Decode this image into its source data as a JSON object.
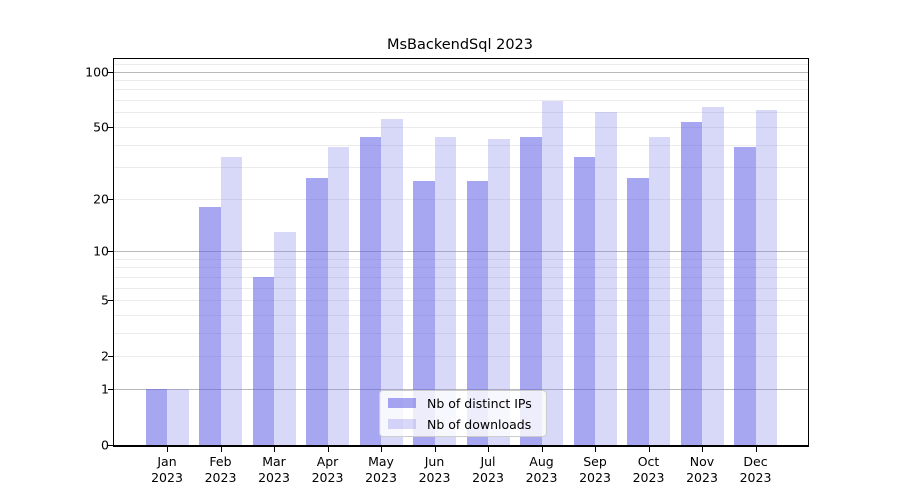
{
  "chart_data": {
    "type": "bar",
    "title": "MsBackendSql 2023",
    "categories": [
      "Jan",
      "Feb",
      "Mar",
      "Apr",
      "May",
      "Jun",
      "Jul",
      "Aug",
      "Sep",
      "Oct",
      "Nov",
      "Dec"
    ],
    "category_year": "2023",
    "series": [
      {
        "name": "Nb of distinct IPs",
        "values": [
          1,
          18,
          7,
          26,
          44,
          25,
          25,
          44,
          34,
          26,
          53,
          39
        ],
        "color": "rgba(95,95,230,0.55)"
      },
      {
        "name": "Nb of downloads",
        "values": [
          1,
          34,
          13,
          39,
          55,
          44,
          43,
          69,
          60,
          44,
          64,
          62
        ],
        "color": "rgba(125,125,235,0.30)"
      }
    ],
    "yscale": "log1p",
    "ylim": [
      0,
      117
    ],
    "yticks": [
      0,
      1,
      2,
      5,
      10,
      20,
      50,
      100
    ],
    "major_gridlines": [
      1,
      10,
      100
    ],
    "minor_gridlines": [
      2,
      3,
      4,
      5,
      6,
      7,
      8,
      9,
      20,
      30,
      40,
      50,
      60,
      70,
      80,
      90,
      110
    ],
    "grid": "on",
    "legend_position": "inside lower center",
    "xlabel": "",
    "ylabel": ""
  },
  "colors": {
    "background": "#ffffff",
    "axis": "#000000",
    "major_gridline": "#b9b9b9",
    "minor_gridline": "#ebebeb",
    "ips_bar_flat": "#a7a7f1",
    "downloads_bar_flat": "#d8d8f9",
    "legend_border": "#cccccc"
  },
  "legend": {
    "items": [
      {
        "label": "Nb of distinct IPs"
      },
      {
        "label": "Nb of downloads"
      }
    ]
  }
}
